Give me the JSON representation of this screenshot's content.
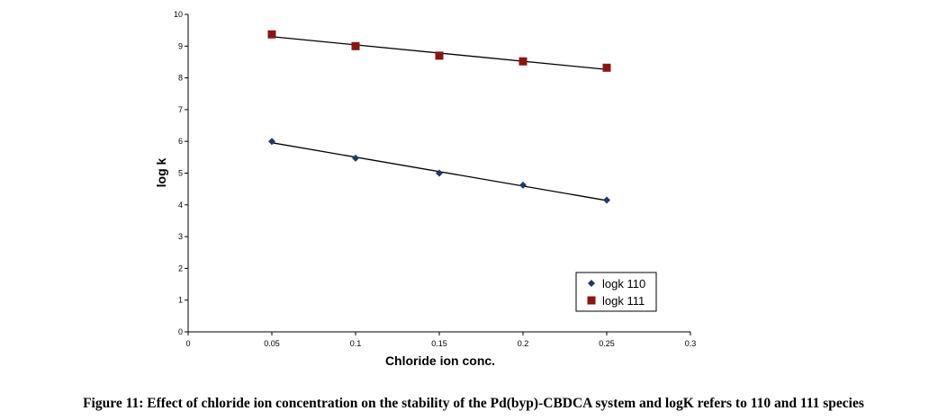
{
  "chart_data": {
    "type": "scatter",
    "xlabel": "Chloride ion conc.",
    "ylabel": "log k",
    "xlim": [
      0,
      0.3
    ],
    "ylim": [
      0,
      10
    ],
    "xticks": [
      "0",
      "0.05",
      "0.1",
      "0.15",
      "0.2",
      "0.25",
      "0.3"
    ],
    "yticks": [
      "0",
      "1",
      "2",
      "3",
      "4",
      "5",
      "6",
      "7",
      "8",
      "9",
      "10"
    ],
    "grid": false,
    "legend_position": "bottom-right",
    "trendlines": "linear",
    "series": [
      {
        "name": "logk 110",
        "marker": "diamond",
        "color": "#1f3a66",
        "x": [
          0.05,
          0.1,
          0.15,
          0.2,
          0.25
        ],
        "y": [
          6.0,
          5.47,
          5.0,
          4.62,
          4.15
        ]
      },
      {
        "name": "logk 111",
        "marker": "square",
        "color": "#8b1414",
        "x": [
          0.05,
          0.1,
          0.15,
          0.2,
          0.25
        ],
        "y": [
          9.37,
          9.0,
          8.7,
          8.52,
          8.32
        ]
      }
    ]
  },
  "caption": "Figure 11: Effect of chloride ion concentration on the stability of the Pd(byp)-CBDCA system and logK refers to 110 and 111 species"
}
